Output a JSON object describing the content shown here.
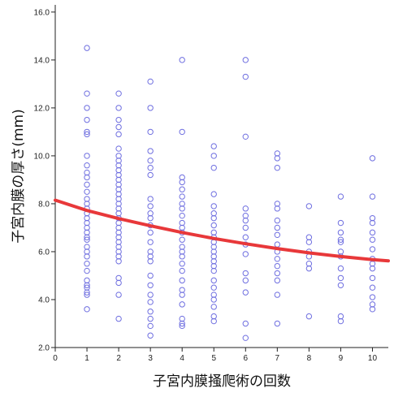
{
  "chart_data": {
    "type": "scatter",
    "xlabel": "子宮内膜掻爬術の回数",
    "ylabel": "子宮内膜の厚さ(mm)",
    "xlim": [
      0,
      10.5
    ],
    "ylim": [
      2.0,
      16.3
    ],
    "x_ticks": [
      0,
      1,
      2,
      3,
      4,
      5,
      6,
      7,
      8,
      9,
      10
    ],
    "x_tick_labels": [
      "0",
      "1",
      "2",
      "3",
      "4",
      "5",
      "6",
      "7",
      "8",
      "9",
      "10"
    ],
    "y_ticks": [
      2.0,
      4.0,
      6.0,
      8.0,
      10.0,
      12.0,
      14.0,
      16.0
    ],
    "y_tick_labels": [
      "2.0",
      "4.0",
      "6.0",
      "8.0",
      "10.0",
      "12.0",
      "14.0",
      "16.0"
    ],
    "grid": false,
    "legend": "none",
    "marker_color": "#6f6fe0",
    "fit_color": "#e8383a",
    "fit_curve": {
      "x": [
        0,
        1,
        2,
        3,
        4,
        5,
        6,
        7,
        8,
        9,
        10,
        10.5
      ],
      "y": [
        8.15,
        7.72,
        7.38,
        7.08,
        6.8,
        6.55,
        6.33,
        6.13,
        5.95,
        5.8,
        5.67,
        5.62
      ]
    },
    "points": [
      {
        "x": 1,
        "y": [
          14.5,
          12.6,
          12.0,
          11.5,
          11.0,
          10.9,
          10.0,
          9.6,
          9.3,
          9.1,
          8.8,
          8.5,
          8.2,
          8.0,
          7.8,
          7.6,
          7.4,
          7.2,
          7.0,
          6.8,
          6.6,
          6.5,
          6.2,
          6.0,
          5.8,
          5.5,
          5.2,
          4.8,
          4.6,
          4.5,
          4.3,
          4.2,
          3.6
        ]
      },
      {
        "x": 2,
        "y": [
          12.6,
          12.0,
          11.5,
          11.2,
          10.9,
          10.3,
          10.0,
          9.8,
          9.6,
          9.4,
          9.2,
          9.0,
          8.8,
          8.6,
          8.4,
          8.2,
          8.0,
          7.8,
          7.6,
          7.4,
          7.2,
          7.0,
          6.8,
          6.6,
          6.4,
          6.2,
          6.0,
          5.8,
          5.6,
          4.9,
          4.7,
          4.2,
          3.2
        ]
      },
      {
        "x": 3,
        "y": [
          13.1,
          12.0,
          11.0,
          10.2,
          9.8,
          9.5,
          9.2,
          8.2,
          7.9,
          7.6,
          7.4,
          7.1,
          6.8,
          6.4,
          6.0,
          5.8,
          5.6,
          5.0,
          4.6,
          4.2,
          3.9,
          3.5,
          3.2,
          2.9,
          2.5
        ]
      },
      {
        "x": 4,
        "y": [
          14.0,
          11.0,
          9.1,
          8.9,
          8.6,
          8.3,
          8.0,
          7.8,
          7.5,
          7.2,
          7.0,
          6.8,
          6.5,
          6.2,
          6.0,
          5.8,
          5.5,
          5.2,
          4.8,
          4.4,
          4.2,
          3.8,
          3.2,
          3.0,
          2.9
        ]
      },
      {
        "x": 5,
        "y": [
          10.4,
          10.0,
          9.5,
          8.4,
          7.9,
          7.6,
          7.4,
          7.1,
          6.8,
          6.6,
          6.4,
          6.2,
          6.0,
          5.8,
          5.6,
          5.4,
          5.2,
          4.8,
          4.5,
          4.2,
          4.0,
          3.7,
          3.3,
          3.1
        ]
      },
      {
        "x": 6,
        "y": [
          14.0,
          13.3,
          10.8,
          7.8,
          7.5,
          7.3,
          7.0,
          6.6,
          6.3,
          5.9,
          5.1,
          4.8,
          4.3,
          3.0,
          2.4
        ]
      },
      {
        "x": 7,
        "y": [
          10.1,
          9.9,
          9.5,
          8.0,
          7.8,
          7.3,
          7.0,
          6.7,
          6.3,
          6.0,
          5.7,
          5.4,
          5.1,
          4.8,
          4.2,
          3.0
        ]
      },
      {
        "x": 8,
        "y": [
          7.9,
          6.6,
          6.4,
          6.0,
          5.8,
          5.5,
          5.3,
          3.3
        ]
      },
      {
        "x": 9,
        "y": [
          8.3,
          7.2,
          6.8,
          6.5,
          6.4,
          6.0,
          5.8,
          5.3,
          4.9,
          4.6,
          3.3,
          3.1
        ]
      },
      {
        "x": 10,
        "y": [
          9.9,
          8.3,
          7.4,
          7.2,
          6.8,
          6.5,
          6.1,
          5.7,
          5.5,
          5.3,
          4.9,
          4.5,
          4.1,
          3.8,
          3.6
        ]
      }
    ]
  }
}
